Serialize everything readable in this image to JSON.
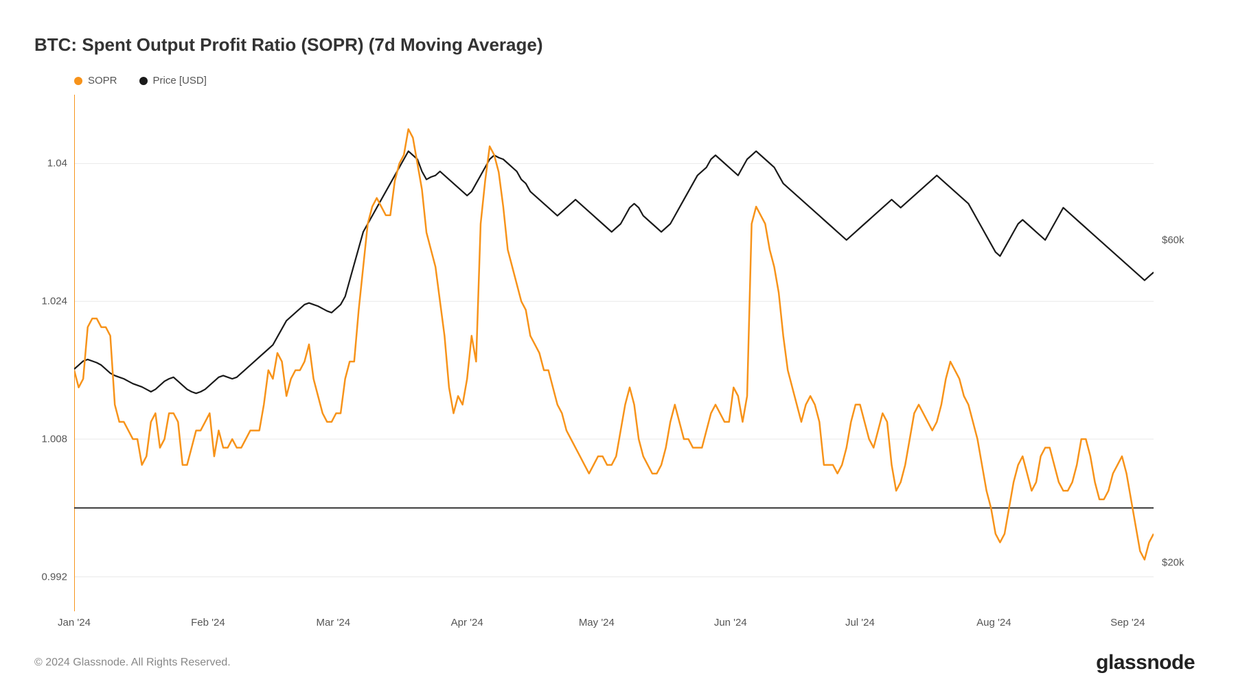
{
  "title": "BTC: Spent Output Profit Ratio (SOPR) (7d Moving Average)",
  "legend": {
    "sopr": {
      "label": "SOPR",
      "color": "#f7931a"
    },
    "price": {
      "label": "Price [USD]",
      "color": "#1a1a1a"
    }
  },
  "chart": {
    "type": "line",
    "background_color": "#ffffff",
    "grid_color": "#e8e8e8",
    "axis_line_color": "#f7931a",
    "reference_line_color": "#1a1a1a",
    "reference_line_y": 1.0,
    "left_axis": {
      "min": 0.988,
      "max": 1.048,
      "ticks": [
        0.992,
        1.008,
        1.024,
        1.04
      ],
      "series_color": "#f7931a",
      "line_width": 2.5
    },
    "right_axis": {
      "min": 14000,
      "max": 78000,
      "ticks": [
        {
          "v": 20000,
          "label": "$20k"
        },
        {
          "v": 60000,
          "label": "$60k"
        }
      ],
      "series_color": "#1a1a1a",
      "line_width": 2.2
    },
    "x_axis": {
      "labels": [
        "Jan '24",
        "Feb '24",
        "Mar '24",
        "Apr '24",
        "May '24",
        "Jun '24",
        "Jul '24",
        "Aug '24",
        "Sep '24"
      ],
      "positions_pct": [
        0,
        12.4,
        24.0,
        36.4,
        48.4,
        60.8,
        72.8,
        85.2,
        97.6
      ]
    },
    "sopr_series": [
      1.016,
      1.014,
      1.015,
      1.021,
      1.022,
      1.022,
      1.021,
      1.021,
      1.02,
      1.012,
      1.01,
      1.01,
      1.009,
      1.008,
      1.008,
      1.005,
      1.006,
      1.01,
      1.011,
      1.007,
      1.008,
      1.011,
      1.011,
      1.01,
      1.005,
      1.005,
      1.007,
      1.009,
      1.009,
      1.01,
      1.011,
      1.006,
      1.009,
      1.007,
      1.007,
      1.008,
      1.007,
      1.007,
      1.008,
      1.009,
      1.009,
      1.009,
      1.012,
      1.016,
      1.015,
      1.018,
      1.017,
      1.013,
      1.015,
      1.016,
      1.016,
      1.017,
      1.019,
      1.015,
      1.013,
      1.011,
      1.01,
      1.01,
      1.011,
      1.011,
      1.015,
      1.017,
      1.017,
      1.023,
      1.028,
      1.033,
      1.035,
      1.036,
      1.035,
      1.034,
      1.034,
      1.038,
      1.04,
      1.041,
      1.044,
      1.043,
      1.04,
      1.037,
      1.032,
      1.03,
      1.028,
      1.024,
      1.02,
      1.014,
      1.011,
      1.013,
      1.012,
      1.015,
      1.02,
      1.017,
      1.033,
      1.038,
      1.042,
      1.041,
      1.039,
      1.035,
      1.03,
      1.028,
      1.026,
      1.024,
      1.023,
      1.02,
      1.019,
      1.018,
      1.016,
      1.016,
      1.014,
      1.012,
      1.011,
      1.009,
      1.008,
      1.007,
      1.006,
      1.005,
      1.004,
      1.005,
      1.006,
      1.006,
      1.005,
      1.005,
      1.006,
      1.009,
      1.012,
      1.014,
      1.012,
      1.008,
      1.006,
      1.005,
      1.004,
      1.004,
      1.005,
      1.007,
      1.01,
      1.012,
      1.01,
      1.008,
      1.008,
      1.007,
      1.007,
      1.007,
      1.009,
      1.011,
      1.012,
      1.011,
      1.01,
      1.01,
      1.014,
      1.013,
      1.01,
      1.013,
      1.033,
      1.035,
      1.034,
      1.033,
      1.03,
      1.028,
      1.025,
      1.02,
      1.016,
      1.014,
      1.012,
      1.01,
      1.012,
      1.013,
      1.012,
      1.01,
      1.005,
      1.005,
      1.005,
      1.004,
      1.005,
      1.007,
      1.01,
      1.012,
      1.012,
      1.01,
      1.008,
      1.007,
      1.009,
      1.011,
      1.01,
      1.005,
      1.002,
      1.003,
      1.005,
      1.008,
      1.011,
      1.012,
      1.011,
      1.01,
      1.009,
      1.01,
      1.012,
      1.015,
      1.017,
      1.016,
      1.015,
      1.013,
      1.012,
      1.01,
      1.008,
      1.005,
      1.002,
      1.0,
      0.997,
      0.996,
      0.997,
      1.0,
      1.003,
      1.005,
      1.006,
      1.004,
      1.002,
      1.003,
      1.006,
      1.007,
      1.007,
      1.005,
      1.003,
      1.002,
      1.002,
      1.003,
      1.005,
      1.008,
      1.008,
      1.006,
      1.003,
      1.001,
      1.001,
      1.002,
      1.004,
      1.005,
      1.006,
      1.004,
      1.001,
      0.998,
      0.995,
      0.994,
      0.996,
      0.997
    ],
    "price_series": [
      44000,
      44500,
      45000,
      45200,
      45000,
      44800,
      44500,
      44000,
      43500,
      43200,
      43000,
      42800,
      42500,
      42200,
      42000,
      41800,
      41500,
      41200,
      41500,
      42000,
      42500,
      42800,
      43000,
      42500,
      42000,
      41500,
      41200,
      41000,
      41200,
      41500,
      42000,
      42500,
      43000,
      43200,
      43000,
      42800,
      43000,
      43500,
      44000,
      44500,
      45000,
      45500,
      46000,
      46500,
      47000,
      48000,
      49000,
      50000,
      50500,
      51000,
      51500,
      52000,
      52200,
      52000,
      51800,
      51500,
      51200,
      51000,
      51500,
      52000,
      53000,
      55000,
      57000,
      59000,
      61000,
      62000,
      63000,
      64000,
      65000,
      66000,
      67000,
      68000,
      69000,
      70000,
      71000,
      70500,
      70000,
      68500,
      67500,
      67800,
      68000,
      68500,
      68000,
      67500,
      67000,
      66500,
      66000,
      65500,
      66000,
      67000,
      68000,
      69000,
      70000,
      70500,
      70200,
      70000,
      69500,
      69000,
      68500,
      67500,
      67000,
      66000,
      65500,
      65000,
      64500,
      64000,
      63500,
      63000,
      63500,
      64000,
      64500,
      65000,
      64500,
      64000,
      63500,
      63000,
      62500,
      62000,
      61500,
      61000,
      61500,
      62000,
      63000,
      64000,
      64500,
      64000,
      63000,
      62500,
      62000,
      61500,
      61000,
      61500,
      62000,
      63000,
      64000,
      65000,
      66000,
      67000,
      68000,
      68500,
      69000,
      70000,
      70500,
      70000,
      69500,
      69000,
      68500,
      68000,
      69000,
      70000,
      70500,
      71000,
      70500,
      70000,
      69500,
      69000,
      68000,
      67000,
      66500,
      66000,
      65500,
      65000,
      64500,
      64000,
      63500,
      63000,
      62500,
      62000,
      61500,
      61000,
      60500,
      60000,
      60500,
      61000,
      61500,
      62000,
      62500,
      63000,
      63500,
      64000,
      64500,
      65000,
      64500,
      64000,
      64500,
      65000,
      65500,
      66000,
      66500,
      67000,
      67500,
      68000,
      67500,
      67000,
      66500,
      66000,
      65500,
      65000,
      64500,
      63500,
      62500,
      61500,
      60500,
      59500,
      58500,
      58000,
      59000,
      60000,
      61000,
      62000,
      62500,
      62000,
      61500,
      61000,
      60500,
      60000,
      61000,
      62000,
      63000,
      64000,
      63500,
      63000,
      62500,
      62000,
      61500,
      61000,
      60500,
      60000,
      59500,
      59000,
      58500,
      58000,
      57500,
      57000,
      56500,
      56000,
      55500,
      55000,
      55500,
      56000
    ]
  },
  "footer": {
    "copyright": "© 2024 Glassnode. All Rights Reserved.",
    "brand": "glassnode"
  }
}
